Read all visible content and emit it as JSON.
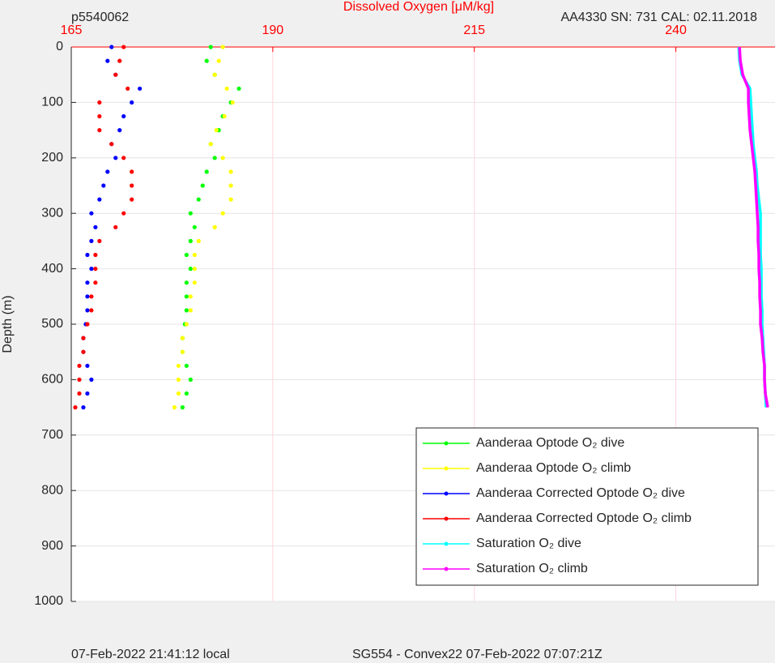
{
  "chart_data": {
    "type": "scatter",
    "title": "Dissolved Oxygen [μM/kg]",
    "left_title": "p5540062",
    "right_title": "AA4330   SN: 731   CAL: 02.11.2018",
    "y_label": "Depth (m)",
    "footer_left": "07-Feb-2022 21:41:12 local",
    "footer_right": "SG554 - Convex22 07-Feb-2022 07:07:21Z",
    "xlim": [
      165,
      252.3
    ],
    "xticks": [
      165,
      190,
      215,
      240
    ],
    "ylim": [
      0,
      1000
    ],
    "yticks": [
      0,
      100,
      200,
      300,
      400,
      500,
      600,
      700,
      800,
      900,
      1000
    ],
    "y_reversed": true,
    "grid": true,
    "legend": "lower right",
    "y": [
      0,
      25,
      50,
      75,
      100,
      125,
      150,
      175,
      200,
      225,
      250,
      275,
      300,
      325,
      350,
      375,
      400,
      425,
      450,
      475,
      500,
      525,
      550,
      575,
      600,
      625,
      650
    ],
    "series": [
      {
        "name": "Aanderaa Optode O₂ dive",
        "color": "#00ff00",
        "style": "points",
        "x": [
          182.3,
          181.8,
          182.8,
          185.8,
          184.8,
          183.8,
          183.3,
          182.3,
          182.8,
          181.8,
          181.3,
          180.8,
          179.8,
          180.3,
          179.8,
          179.3,
          179.8,
          179.3,
          179.3,
          179.3,
          179.1,
          178.8,
          178.8,
          179.3,
          179.8,
          179.3,
          178.8
        ]
      },
      {
        "name": "Aanderaa Optode O₂ climb",
        "color": "#ffff00",
        "style": "points",
        "x": [
          183.8,
          183.3,
          182.8,
          184.3,
          185.0,
          184.0,
          183.0,
          182.3,
          183.8,
          184.8,
          184.8,
          184.8,
          183.8,
          182.8,
          180.8,
          180.3,
          180.3,
          180.3,
          179.8,
          179.8,
          179.3,
          178.8,
          178.8,
          178.3,
          178.3,
          178.3,
          177.8
        ]
      },
      {
        "name": "Aanderaa Corrected Optode O₂ dive",
        "color": "#0000ff",
        "style": "points",
        "x": [
          170.0,
          169.5,
          170.5,
          173.5,
          172.5,
          171.5,
          171.0,
          170.0,
          170.5,
          169.5,
          169.0,
          168.5,
          167.5,
          168.0,
          167.5,
          167.0,
          167.5,
          167.0,
          167.0,
          167.0,
          166.8,
          166.5,
          166.5,
          167.0,
          167.5,
          167.0,
          166.5
        ]
      },
      {
        "name": "Aanderaa Corrected Optode O₂ climb",
        "color": "#ff0000",
        "style": "points",
        "x": [
          171.5,
          171.0,
          170.5,
          172.0,
          168.5,
          168.5,
          168.5,
          170.0,
          171.5,
          172.5,
          172.5,
          172.5,
          171.5,
          170.5,
          168.5,
          168.0,
          168.0,
          168.0,
          167.5,
          167.5,
          167.0,
          166.5,
          166.5,
          166.0,
          166.0,
          166.0,
          165.5
        ]
      },
      {
        "name": "Saturation O₂ dive",
        "color": "#00ffff",
        "style": "line",
        "x": [
          247.8,
          247.9,
          248.2,
          249.2,
          249.3,
          249.4,
          249.5,
          249.6,
          249.8,
          250.0,
          250.1,
          250.3,
          250.5,
          250.5,
          250.5,
          250.5,
          250.6,
          250.6,
          250.6,
          250.7,
          250.7,
          250.8,
          250.9,
          251.0,
          251.0,
          251.1,
          251.2
        ]
      },
      {
        "name": "Saturation O₂ climb",
        "color": "#ff00ff",
        "style": "line",
        "x": [
          247.9,
          248.0,
          248.3,
          249.0,
          249.0,
          249.1,
          249.2,
          249.4,
          249.6,
          249.8,
          249.9,
          250.0,
          250.1,
          250.2,
          250.2,
          250.3,
          250.3,
          250.4,
          250.4,
          250.5,
          250.5,
          250.7,
          250.8,
          251.0,
          251.0,
          251.1,
          251.4
        ]
      }
    ]
  }
}
